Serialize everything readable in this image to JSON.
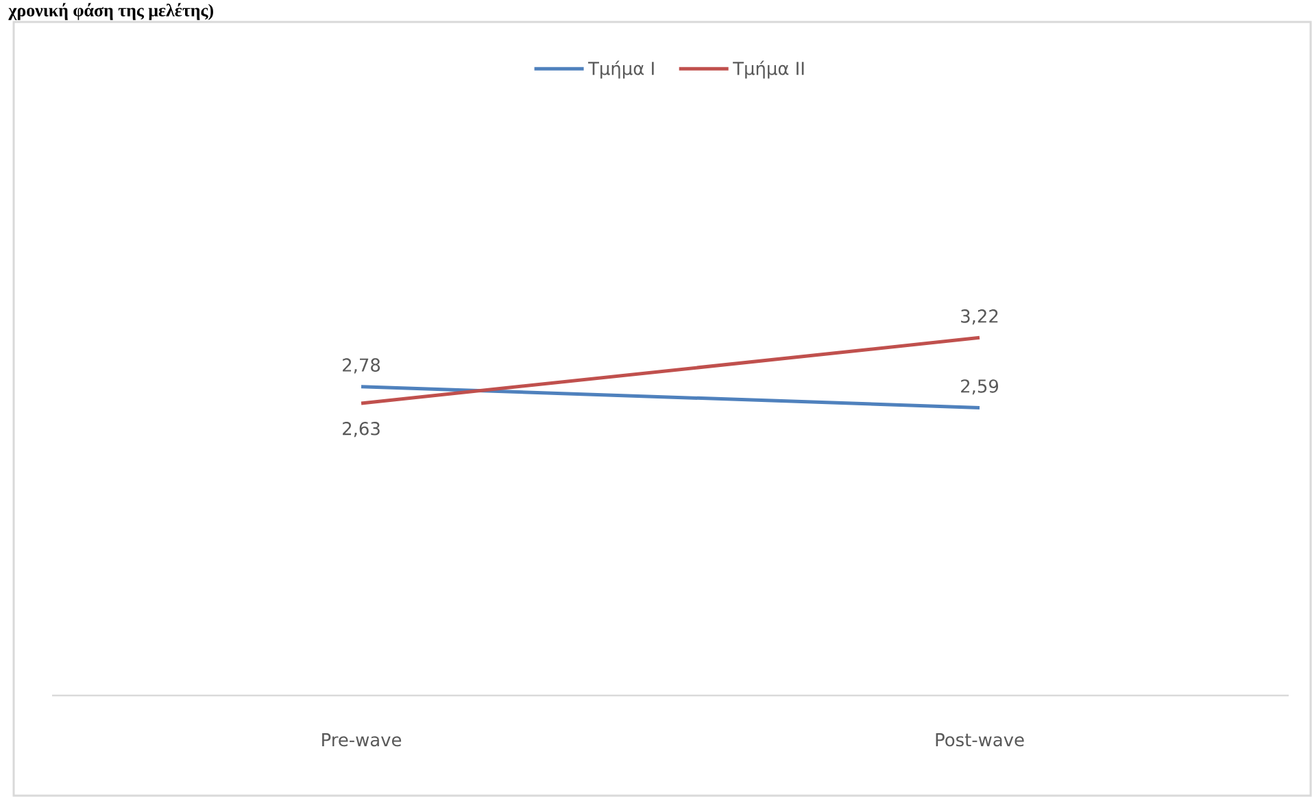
{
  "chart_data": {
    "type": "line",
    "title": "χρονική φάση της μελέτης)",
    "categories": [
      "Pre-wave",
      "Post-wave"
    ],
    "series": [
      {
        "name": "Τμήμα I",
        "color": "#4f81bd",
        "values": [
          2.78,
          2.59
        ],
        "value_labels": [
          "2,78",
          "2,59"
        ]
      },
      {
        "name": "Τμήμα II",
        "color": "#c0504d",
        "values": [
          2.63,
          3.22
        ],
        "value_labels": [
          "2,63",
          "3,22"
        ]
      }
    ],
    "tick_labels": "x",
    "legend": "top"
  }
}
